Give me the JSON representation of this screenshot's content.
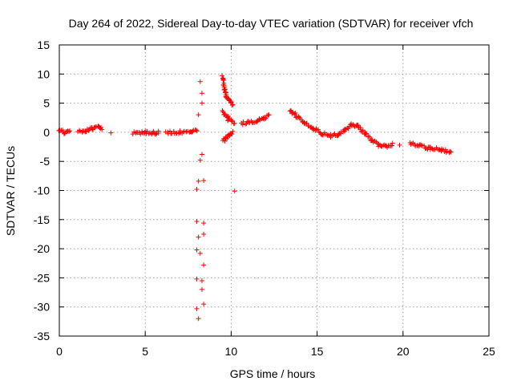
{
  "chart_data": {
    "type": "scatter",
    "title": "Day 264 of 2022, Sidereal Day-to-day VTEC variation (SDTVAR) for receiver vfch",
    "xlabel": "GPS time / hours",
    "ylabel": "SDTVAR / TECUs",
    "xlim": [
      0,
      25
    ],
    "ylim": [
      -35,
      15
    ],
    "xticks": [
      0,
      5,
      10,
      15,
      20,
      25
    ],
    "yticks": [
      -35,
      -30,
      -25,
      -20,
      -15,
      -10,
      -5,
      0,
      5,
      10,
      15
    ],
    "grid": true,
    "marker": "+",
    "series": [
      {
        "name": "SDTVAR",
        "color": "#ff0000",
        "segments": [
          {
            "x": [
              0.0,
              0.3,
              0.6
            ],
            "y": [
              0.5,
              0.0,
              0.2
            ]
          },
          {
            "x": [
              1.1,
              1.5,
              1.9,
              2.3,
              2.5
            ],
            "y": [
              0.0,
              0.3,
              0.6,
              0.8,
              0.5
            ]
          },
          {
            "x": [
              3.0
            ],
            "y": [
              -0.1
            ]
          },
          {
            "x": [
              4.3,
              5.0,
              5.5,
              5.8
            ],
            "y": [
              -0.2,
              0.0,
              -0.1,
              0.0
            ]
          },
          {
            "x": [
              6.2,
              7.0,
              7.7,
              8.0
            ],
            "y": [
              -0.1,
              0.0,
              0.2,
              0.4
            ]
          },
          {
            "x": [
              9.5,
              9.6,
              9.7,
              9.8,
              9.9,
              10.0,
              10.1
            ],
            "y": [
              9.5,
              7.5,
              6.2,
              5.8,
              5.5,
              5.0,
              4.8
            ]
          },
          {
            "x": [
              9.5,
              9.7,
              9.9,
              10.1
            ],
            "y": [
              -1.5,
              -1.0,
              -0.5,
              0.0
            ]
          },
          {
            "x": [
              9.5,
              9.8,
              10.2
            ],
            "y": [
              3.5,
              2.5,
              1.6
            ]
          },
          {
            "x": [
              10.6,
              11.0,
              11.5,
              11.9,
              12.2
            ],
            "y": [
              1.5,
              1.8,
              2.0,
              2.4,
              2.8
            ]
          },
          {
            "x": [
              13.4,
              13.8,
              14.3,
              14.8,
              15.3,
              15.8,
              16.2,
              16.6,
              17.0,
              17.4,
              17.8,
              18.2,
              18.6,
              19.0,
              19.4
            ],
            "y": [
              3.8,
              2.8,
              1.6,
              0.6,
              -0.2,
              -0.6,
              -0.4,
              0.4,
              1.3,
              1.0,
              -0.2,
              -1.4,
              -2.2,
              -2.4,
              -2.0
            ]
          },
          {
            "x": [
              19.8
            ],
            "y": [
              -2.2
            ]
          },
          {
            "x": [
              20.4,
              21.0,
              21.6,
              22.2,
              22.8
            ],
            "y": [
              -1.8,
              -2.4,
              -2.8,
              -3.0,
              -3.4
            ]
          }
        ],
        "points": [
          {
            "x": 8.2,
            "y": 8.7
          },
          {
            "x": 8.3,
            "y": 6.7
          },
          {
            "x": 8.3,
            "y": 5.0
          },
          {
            "x": 8.1,
            "y": 3.0
          },
          {
            "x": 8.3,
            "y": -3.8
          },
          {
            "x": 8.2,
            "y": -4.8
          },
          {
            "x": 8.0,
            "y": -9.8
          },
          {
            "x": 8.1,
            "y": -8.4
          },
          {
            "x": 8.4,
            "y": -8.3
          },
          {
            "x": 8.0,
            "y": -15.3
          },
          {
            "x": 8.4,
            "y": -15.6
          },
          {
            "x": 8.1,
            "y": -18.0
          },
          {
            "x": 8.4,
            "y": -17.5
          },
          {
            "x": 8.0,
            "y": -20.2
          },
          {
            "x": 8.2,
            "y": -20.8
          },
          {
            "x": 8.4,
            "y": -22.8
          },
          {
            "x": 8.0,
            "y": -25.2
          },
          {
            "x": 8.3,
            "y": -25.5
          },
          {
            "x": 8.3,
            "y": -27.0
          },
          {
            "x": 8.0,
            "y": -30.3
          },
          {
            "x": 8.4,
            "y": -29.5
          },
          {
            "x": 8.1,
            "y": -32.0
          },
          {
            "x": 10.2,
            "y": -10.1
          },
          {
            "x": 9.8,
            "y": 2.0
          }
        ]
      }
    ]
  }
}
